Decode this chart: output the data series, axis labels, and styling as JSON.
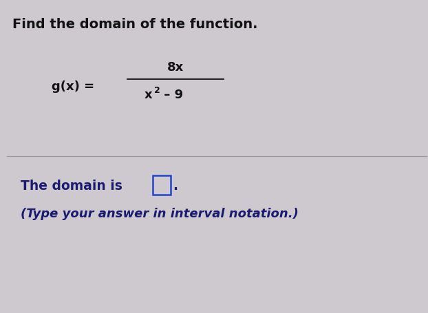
{
  "title": "Find the domain of the function.",
  "title_fontsize": 14,
  "bg_color": "#cdc9cf",
  "text_color_top": "#111111",
  "text_color_bottom": "#1a1a6e",
  "divider_color": "#999999",
  "box_color": "#2244cc",
  "function_label": "g(x) =",
  "numerator": "8x",
  "denominator_base": "x",
  "denominator_exp": "2",
  "denominator_rest": " – 9",
  "domain_text": "The domain is",
  "domain_note": "(Type your answer in interval notation.)"
}
